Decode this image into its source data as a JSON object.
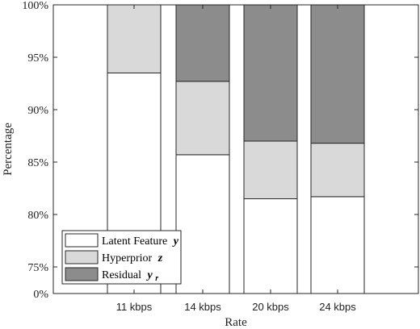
{
  "chart_data": {
    "type": "bar",
    "stacked": true,
    "categories": [
      "11 kbps",
      "14 kbps",
      "20 kbps",
      "24 kbps"
    ],
    "xlabel": "Rate",
    "ylabel": "Percentage",
    "y_ticks": [
      "0%",
      "75%",
      "80%",
      "85%",
      "90%",
      "95%",
      "100%"
    ],
    "y_axis_note": "broken axis: 0% to 75% compressed at bottom",
    "ylim": [
      0,
      100
    ],
    "series": [
      {
        "name": "Latent Feature",
        "symbol": "y",
        "color": "#ffffff",
        "values": [
          93.5,
          85.7,
          81.5,
          81.7
        ]
      },
      {
        "name": "Hyperprior",
        "symbol": "z",
        "color": "#d9d9d9",
        "values": [
          6.5,
          7.0,
          5.5,
          5.1
        ]
      },
      {
        "name": "Residual",
        "symbol": "y",
        "symbol_sub": "r",
        "color": "#8c8c8c",
        "values": [
          0.0,
          7.3,
          13.0,
          13.2
        ]
      }
    ],
    "legend_position": "bottom-left",
    "grid": false
  }
}
